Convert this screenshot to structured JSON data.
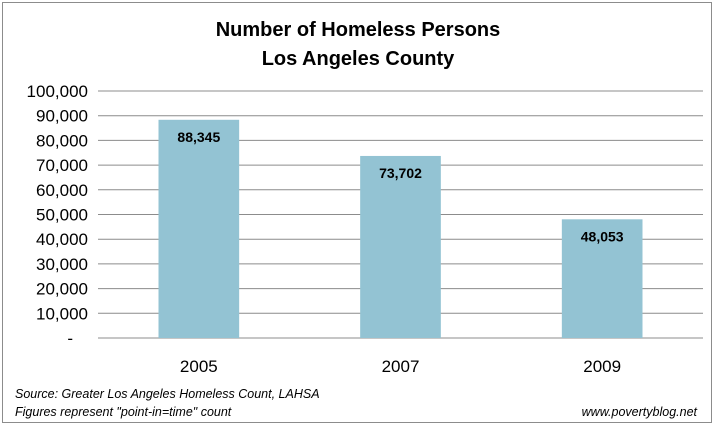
{
  "chart_data": {
    "type": "bar",
    "title": [
      "Number of Homeless Persons",
      "Los Angeles County"
    ],
    "categories": [
      "2005",
      "2007",
      "2009"
    ],
    "values": [
      88345,
      73702,
      48053
    ],
    "data_labels": [
      "88,345",
      "73,702",
      "48,053"
    ],
    "ylim": [
      0,
      100000
    ],
    "yticks": [
      0,
      10000,
      20000,
      30000,
      40000,
      50000,
      60000,
      70000,
      80000,
      90000,
      100000
    ],
    "ytick_labels": [
      "-",
      "10,000",
      "20,000",
      "30,000",
      "40,000",
      "50,000",
      "60,000",
      "70,000",
      "80,000",
      "90,000",
      "100,000"
    ],
    "grid": true,
    "bar_color": "#93c3d3",
    "grid_color": "#8c8c8c"
  },
  "footer": {
    "source": "Source: Greater Los Angeles Homeless Count, LAHSA",
    "figures": "Figures represent \"point-in=time\" count",
    "credit": "www.povertyblog.net"
  }
}
